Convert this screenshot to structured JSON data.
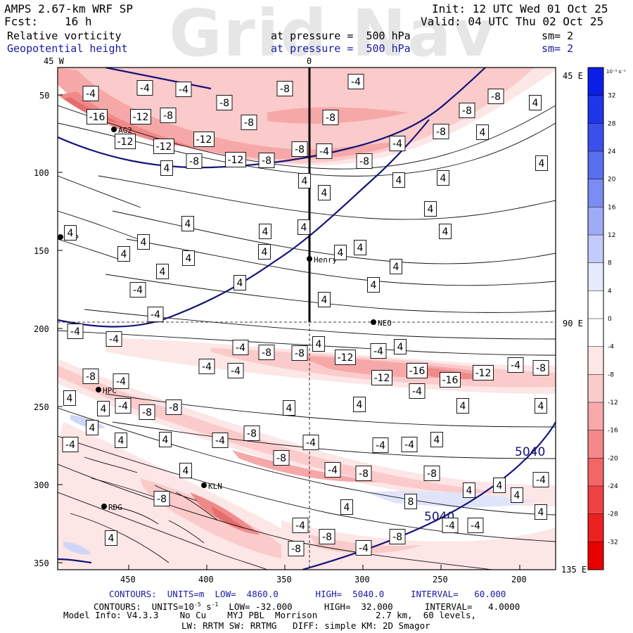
{
  "watermark": "Grid Nav",
  "header": {
    "model": "AMPS 2.67-km WRF SP",
    "forecast_label": "Fcst:",
    "forecast_hours": "16 h",
    "init": "Init: 12 UTC Wed 01 Oct 25",
    "valid": "Valid: 04 UTC Thu 02 Oct 25",
    "field1_name": "Relative vorticity",
    "field1_level": "at pressure =  500 hPa",
    "field1_smooth": "sm= 2",
    "field2_name": "Geopotential height",
    "field2_level": "at pressure =  500 hPa",
    "field2_smooth": "sm= 2"
  },
  "grid_labels": {
    "top_left": "45 W",
    "top_center": "0",
    "right_top": "45 E",
    "right_mid": "90 E",
    "right_bottom": "135 E"
  },
  "chart_data": {
    "type": "heatmap",
    "x_ticks": [
      "450",
      "400",
      "350",
      "300",
      "250",
      "200"
    ],
    "y_ticks": [
      "50",
      "100",
      "150",
      "200",
      "250",
      "300",
      "350"
    ],
    "colorbar": {
      "unit": "10⁻⁵ s⁻¹",
      "levels": [
        "32",
        "28",
        "24",
        "20",
        "16",
        "12",
        "8",
        "4",
        "0",
        "-4",
        "-8",
        "-12",
        "-16",
        "-20",
        "-24",
        "-28",
        "-32"
      ]
    },
    "stations": [
      {
        "name": "AG2"
      },
      {
        "name": "SMP"
      },
      {
        "name": "Henry"
      },
      {
        "name": "NEO"
      },
      {
        "name": "HPC"
      },
      {
        "name": "KLN"
      },
      {
        "name": "RDG"
      }
    ],
    "height_contour_labels": [
      "5040",
      "5040"
    ],
    "vorticity_labels": {
      "neg4": "-4",
      "neg8": "-8",
      "neg12": "-12",
      "neg16": "-16",
      "pos4": "4",
      "pos8": "8"
    }
  },
  "footer": {
    "line1": "CONTOURS:  UNITS=m  LOW=  4860.0       HIGH=  5040.0     INTERVAL=   60.000",
    "line2_a": "CONTOURS:  UNITS=10",
    "line2_sup1": "-5",
    "line2_b": " s",
    "line2_sup2": "-1",
    "line2_c": "  LOW= -32.000      HIGH=  32.000      INTERVAL=   4.0000",
    "line3": "Model Info: V4.3.3    No Cu    MYJ PBL  Morrison           2.7 km,  60 levels,",
    "line4": "LW: RRTM SW: RRTMG   DIFF: simple KM: 2D Smagor"
  }
}
